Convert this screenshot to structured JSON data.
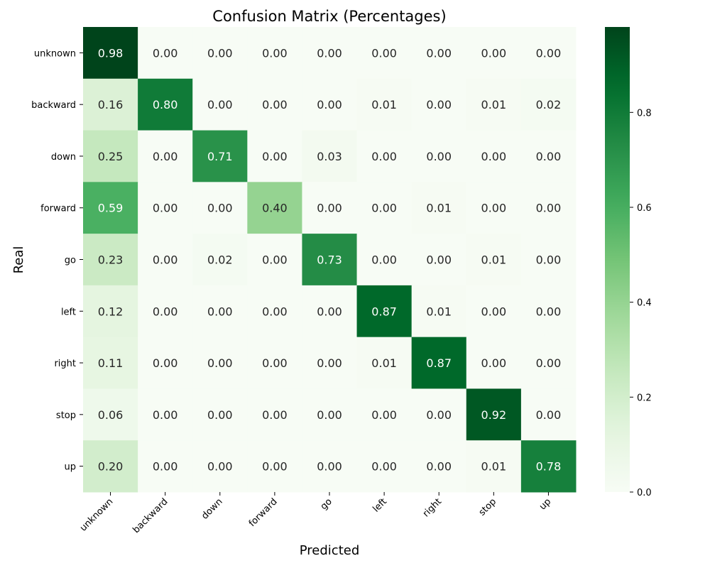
{
  "chart_data": {
    "type": "heatmap",
    "title": "Confusion Matrix (Percentages)",
    "xlabel": "Predicted",
    "ylabel": "Real",
    "x_categories": [
      "unknown",
      "backward",
      "down",
      "forward",
      "go",
      "left",
      "right",
      "stop",
      "up"
    ],
    "y_categories": [
      "unknown",
      "backward",
      "down",
      "forward",
      "go",
      "left",
      "right",
      "stop",
      "up"
    ],
    "values": [
      [
        0.98,
        0.0,
        0.0,
        0.0,
        0.0,
        0.0,
        0.0,
        0.0,
        0.0
      ],
      [
        0.16,
        0.8,
        0.0,
        0.0,
        0.0,
        0.01,
        0.0,
        0.01,
        0.02
      ],
      [
        0.25,
        0.0,
        0.71,
        0.0,
        0.03,
        0.0,
        0.0,
        0.0,
        0.0
      ],
      [
        0.59,
        0.0,
        0.0,
        0.4,
        0.0,
        0.0,
        0.01,
        0.0,
        0.0
      ],
      [
        0.23,
        0.0,
        0.02,
        0.0,
        0.73,
        0.0,
        0.0,
        0.01,
        0.0
      ],
      [
        0.12,
        0.0,
        0.0,
        0.0,
        0.0,
        0.87,
        0.01,
        0.0,
        0.0
      ],
      [
        0.11,
        0.0,
        0.0,
        0.0,
        0.0,
        0.01,
        0.87,
        0.0,
        0.0
      ],
      [
        0.06,
        0.0,
        0.0,
        0.0,
        0.0,
        0.0,
        0.0,
        0.92,
        0.0
      ],
      [
        0.2,
        0.0,
        0.0,
        0.0,
        0.0,
        0.0,
        0.0,
        0.01,
        0.78
      ]
    ],
    "colorbar": {
      "range": [
        0.0,
        0.98
      ],
      "ticks": [
        0.0,
        0.2,
        0.4,
        0.6,
        0.8
      ],
      "tick_labels": [
        "0.0",
        "0.2",
        "0.4",
        "0.6",
        "0.8"
      ],
      "colormap": "Greens"
    },
    "grid": false
  }
}
